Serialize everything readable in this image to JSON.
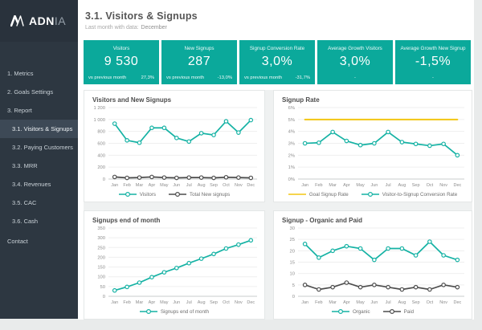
{
  "brand": {
    "name_bold": "ADN",
    "name_light": "IA"
  },
  "colors": {
    "accent_teal": "#0ba99b",
    "chart_teal": "#15b2a4",
    "chart_dark": "#4d4d4d",
    "goal_gold": "#f3c612",
    "sidebar_bg": "#2d3741",
    "sidebar_active_bg": "#3d4956",
    "page_bg": "#e9ebeb"
  },
  "sidebar": {
    "items": [
      {
        "label": "1. Metrics",
        "child": false,
        "active": false
      },
      {
        "label": "2. Goals Settings",
        "child": false,
        "active": false
      },
      {
        "label": "3. Report",
        "child": false,
        "active": false
      },
      {
        "label": "3.1. Visitors & Signups",
        "child": true,
        "active": true
      },
      {
        "label": "3.2. Paying Customers",
        "child": true,
        "active": false
      },
      {
        "label": "3.3. MRR",
        "child": true,
        "active": false
      },
      {
        "label": "3.4. Revenues",
        "child": true,
        "active": false
      },
      {
        "label": "3.5. CAC",
        "child": true,
        "active": false
      },
      {
        "label": "3.6. Cash",
        "child": true,
        "active": false
      },
      {
        "label": "Contact",
        "child": false,
        "active": false
      }
    ]
  },
  "header": {
    "title": "3.1. Visitors & Signups",
    "subtitle_label": "Last month with data:",
    "subtitle_value": "December"
  },
  "kpis": [
    {
      "title": "Visitors",
      "value": "9 530",
      "sub_label": "vs previous month",
      "sub_value": "27,3%"
    },
    {
      "title": "New Signups",
      "value": "287",
      "sub_label": "vs previous month",
      "sub_value": "-13,0%"
    },
    {
      "title": "Signup Conversion Rate",
      "value": "3,0%",
      "sub_label": "vs previous month",
      "sub_value": "-31,7%"
    },
    {
      "title": "Average Growth Visitors",
      "value": "3,0%",
      "sub_label": "",
      "sub_value": "-"
    },
    {
      "title": "Average Growth New Signup",
      "value": "-1,5%",
      "sub_label": "",
      "sub_value": "-"
    }
  ],
  "chart_data": [
    {
      "type": "line",
      "title": "Visitors and  New Signups",
      "categories": [
        "Jan",
        "Feb",
        "Mar",
        "Apr",
        "May",
        "Jun",
        "Jul",
        "Aug",
        "Sep",
        "Oct",
        "Nov",
        "Dec"
      ],
      "ylim": [
        0,
        1200
      ],
      "ytick_labels": [
        "0",
        "200",
        "400",
        "600",
        "800",
        "1 000",
        "1 200"
      ],
      "grid": true,
      "legend_position": "bottom",
      "series": [
        {
          "name": "Visitors",
          "color": "#15b2a4",
          "markers": true,
          "values": [
            930,
            650,
            610,
            860,
            860,
            690,
            630,
            770,
            740,
            970,
            780,
            990
          ]
        },
        {
          "name": "Total New signups",
          "color": "#4d4d4d",
          "markers": true,
          "values": [
            35,
            20,
            25,
            35,
            25,
            20,
            25,
            25,
            20,
            30,
            25,
            20
          ]
        }
      ]
    },
    {
      "type": "line",
      "title": "Signup Rate",
      "categories": [
        "Jan",
        "Feb",
        "Mar",
        "Apr",
        "May",
        "Jun",
        "Jul",
        "Aug",
        "Sep",
        "Oct",
        "Nov",
        "Dec"
      ],
      "ylim": [
        0,
        6
      ],
      "ytick_labels": [
        "0%",
        "1%",
        "2%",
        "3%",
        "4%",
        "5%",
        "6%"
      ],
      "grid": true,
      "legend_position": "bottom",
      "series": [
        {
          "name": "Goal Signup Rate",
          "color": "#f3c612",
          "markers": false,
          "values": [
            5,
            5,
            5,
            5,
            5,
            5,
            5,
            5,
            5,
            5,
            5,
            5
          ]
        },
        {
          "name": "Visitor-to-Signup Conversion Rate",
          "color": "#15b2a4",
          "markers": true,
          "values": [
            3.0,
            3.05,
            3.95,
            3.2,
            2.85,
            3.0,
            3.95,
            3.1,
            2.95,
            2.8,
            2.95,
            2.0
          ]
        }
      ]
    },
    {
      "type": "line",
      "title": "Signups end of month",
      "categories": [
        "Jan",
        "Feb",
        "Mar",
        "Apr",
        "May",
        "Jun",
        "Jul",
        "Aug",
        "Sep",
        "Oct",
        "Nov",
        "Dec"
      ],
      "ylim": [
        0,
        350
      ],
      "ytick_labels": [
        "0",
        "50",
        "100",
        "150",
        "200",
        "250",
        "300",
        "350"
      ],
      "grid": true,
      "legend_position": "bottom",
      "series": [
        {
          "name": "Signups end of month",
          "color": "#15b2a4",
          "markers": true,
          "values": [
            30,
            48,
            70,
            98,
            123,
            145,
            170,
            193,
            217,
            245,
            265,
            287
          ]
        }
      ]
    },
    {
      "type": "line",
      "title": "Signup - Organic and Paid",
      "categories": [
        "Jan",
        "Feb",
        "Mar",
        "Apr",
        "May",
        "Jun",
        "Jul",
        "Aug",
        "Sep",
        "Oct",
        "Nov",
        "Dec"
      ],
      "ylim": [
        0,
        30
      ],
      "ytick_labels": [
        "0",
        "5",
        "10",
        "15",
        "20",
        "25",
        "30"
      ],
      "grid": true,
      "legend_position": "bottom",
      "series": [
        {
          "name": "Organic",
          "color": "#15b2a4",
          "markers": true,
          "values": [
            23,
            17,
            20,
            22,
            21,
            16,
            21,
            21,
            18,
            24,
            18,
            16
          ]
        },
        {
          "name": "Paid",
          "color": "#4d4d4d",
          "markers": true,
          "values": [
            5,
            3,
            4,
            6,
            4,
            5,
            4,
            3,
            4,
            3,
            5,
            4
          ]
        }
      ]
    }
  ]
}
